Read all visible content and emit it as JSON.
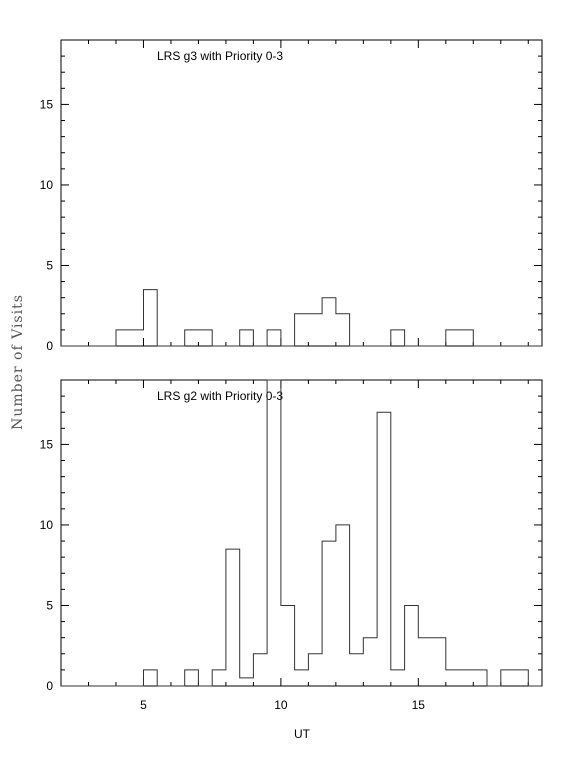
{
  "chart_data": [
    {
      "type": "bar",
      "title": "LRS g3 with Priority 0-3",
      "xlabel": "UT",
      "ylabel": "Number of Visits",
      "xlim": [
        2,
        19.5
      ],
      "ylim": [
        0,
        19
      ],
      "x_ticks": [
        5,
        10,
        15
      ],
      "y_ticks": [
        0,
        5,
        10,
        15
      ],
      "bin_width": 0.5,
      "bins": [
        {
          "x": 4.25,
          "value": 1
        },
        {
          "x": 4.75,
          "value": 1
        },
        {
          "x": 5.25,
          "value": 3.5
        },
        {
          "x": 6.75,
          "value": 1
        },
        {
          "x": 7.25,
          "value": 1
        },
        {
          "x": 8.75,
          "value": 1
        },
        {
          "x": 9.75,
          "value": 1
        },
        {
          "x": 10.75,
          "value": 2
        },
        {
          "x": 11.25,
          "value": 2
        },
        {
          "x": 11.75,
          "value": 3
        },
        {
          "x": 12.25,
          "value": 2
        },
        {
          "x": 14.25,
          "value": 1
        },
        {
          "x": 16.25,
          "value": 1
        },
        {
          "x": 16.75,
          "value": 1
        }
      ]
    },
    {
      "type": "bar",
      "title": "LRS g2 with Priority 0-3",
      "xlabel": "UT",
      "ylabel": "Number of Visits",
      "xlim": [
        2,
        19.5
      ],
      "ylim": [
        0,
        19
      ],
      "x_ticks": [
        5,
        10,
        15
      ],
      "y_ticks": [
        0,
        5,
        10,
        15
      ],
      "bin_width": 0.5,
      "bins": [
        {
          "x": 5.25,
          "value": 1
        },
        {
          "x": 6.75,
          "value": 1
        },
        {
          "x": 7.75,
          "value": 1
        },
        {
          "x": 8.25,
          "value": 8.5
        },
        {
          "x": 8.75,
          "value": 0.5
        },
        {
          "x": 9.25,
          "value": 2
        },
        {
          "x": 9.75,
          "value": 19
        },
        {
          "x": 10.25,
          "value": 5
        },
        {
          "x": 10.75,
          "value": 1
        },
        {
          "x": 11.25,
          "value": 2
        },
        {
          "x": 11.75,
          "value": 9
        },
        {
          "x": 12.25,
          "value": 10
        },
        {
          "x": 12.75,
          "value": 2
        },
        {
          "x": 13.25,
          "value": 3
        },
        {
          "x": 13.75,
          "value": 17
        },
        {
          "x": 14.25,
          "value": 1
        },
        {
          "x": 14.75,
          "value": 5
        },
        {
          "x": 15.25,
          "value": 3
        },
        {
          "x": 15.75,
          "value": 3
        },
        {
          "x": 16.25,
          "value": 1
        },
        {
          "x": 16.75,
          "value": 1
        },
        {
          "x": 17.25,
          "value": 1
        },
        {
          "x": 18.25,
          "value": 1
        },
        {
          "x": 18.75,
          "value": 1
        }
      ]
    }
  ]
}
